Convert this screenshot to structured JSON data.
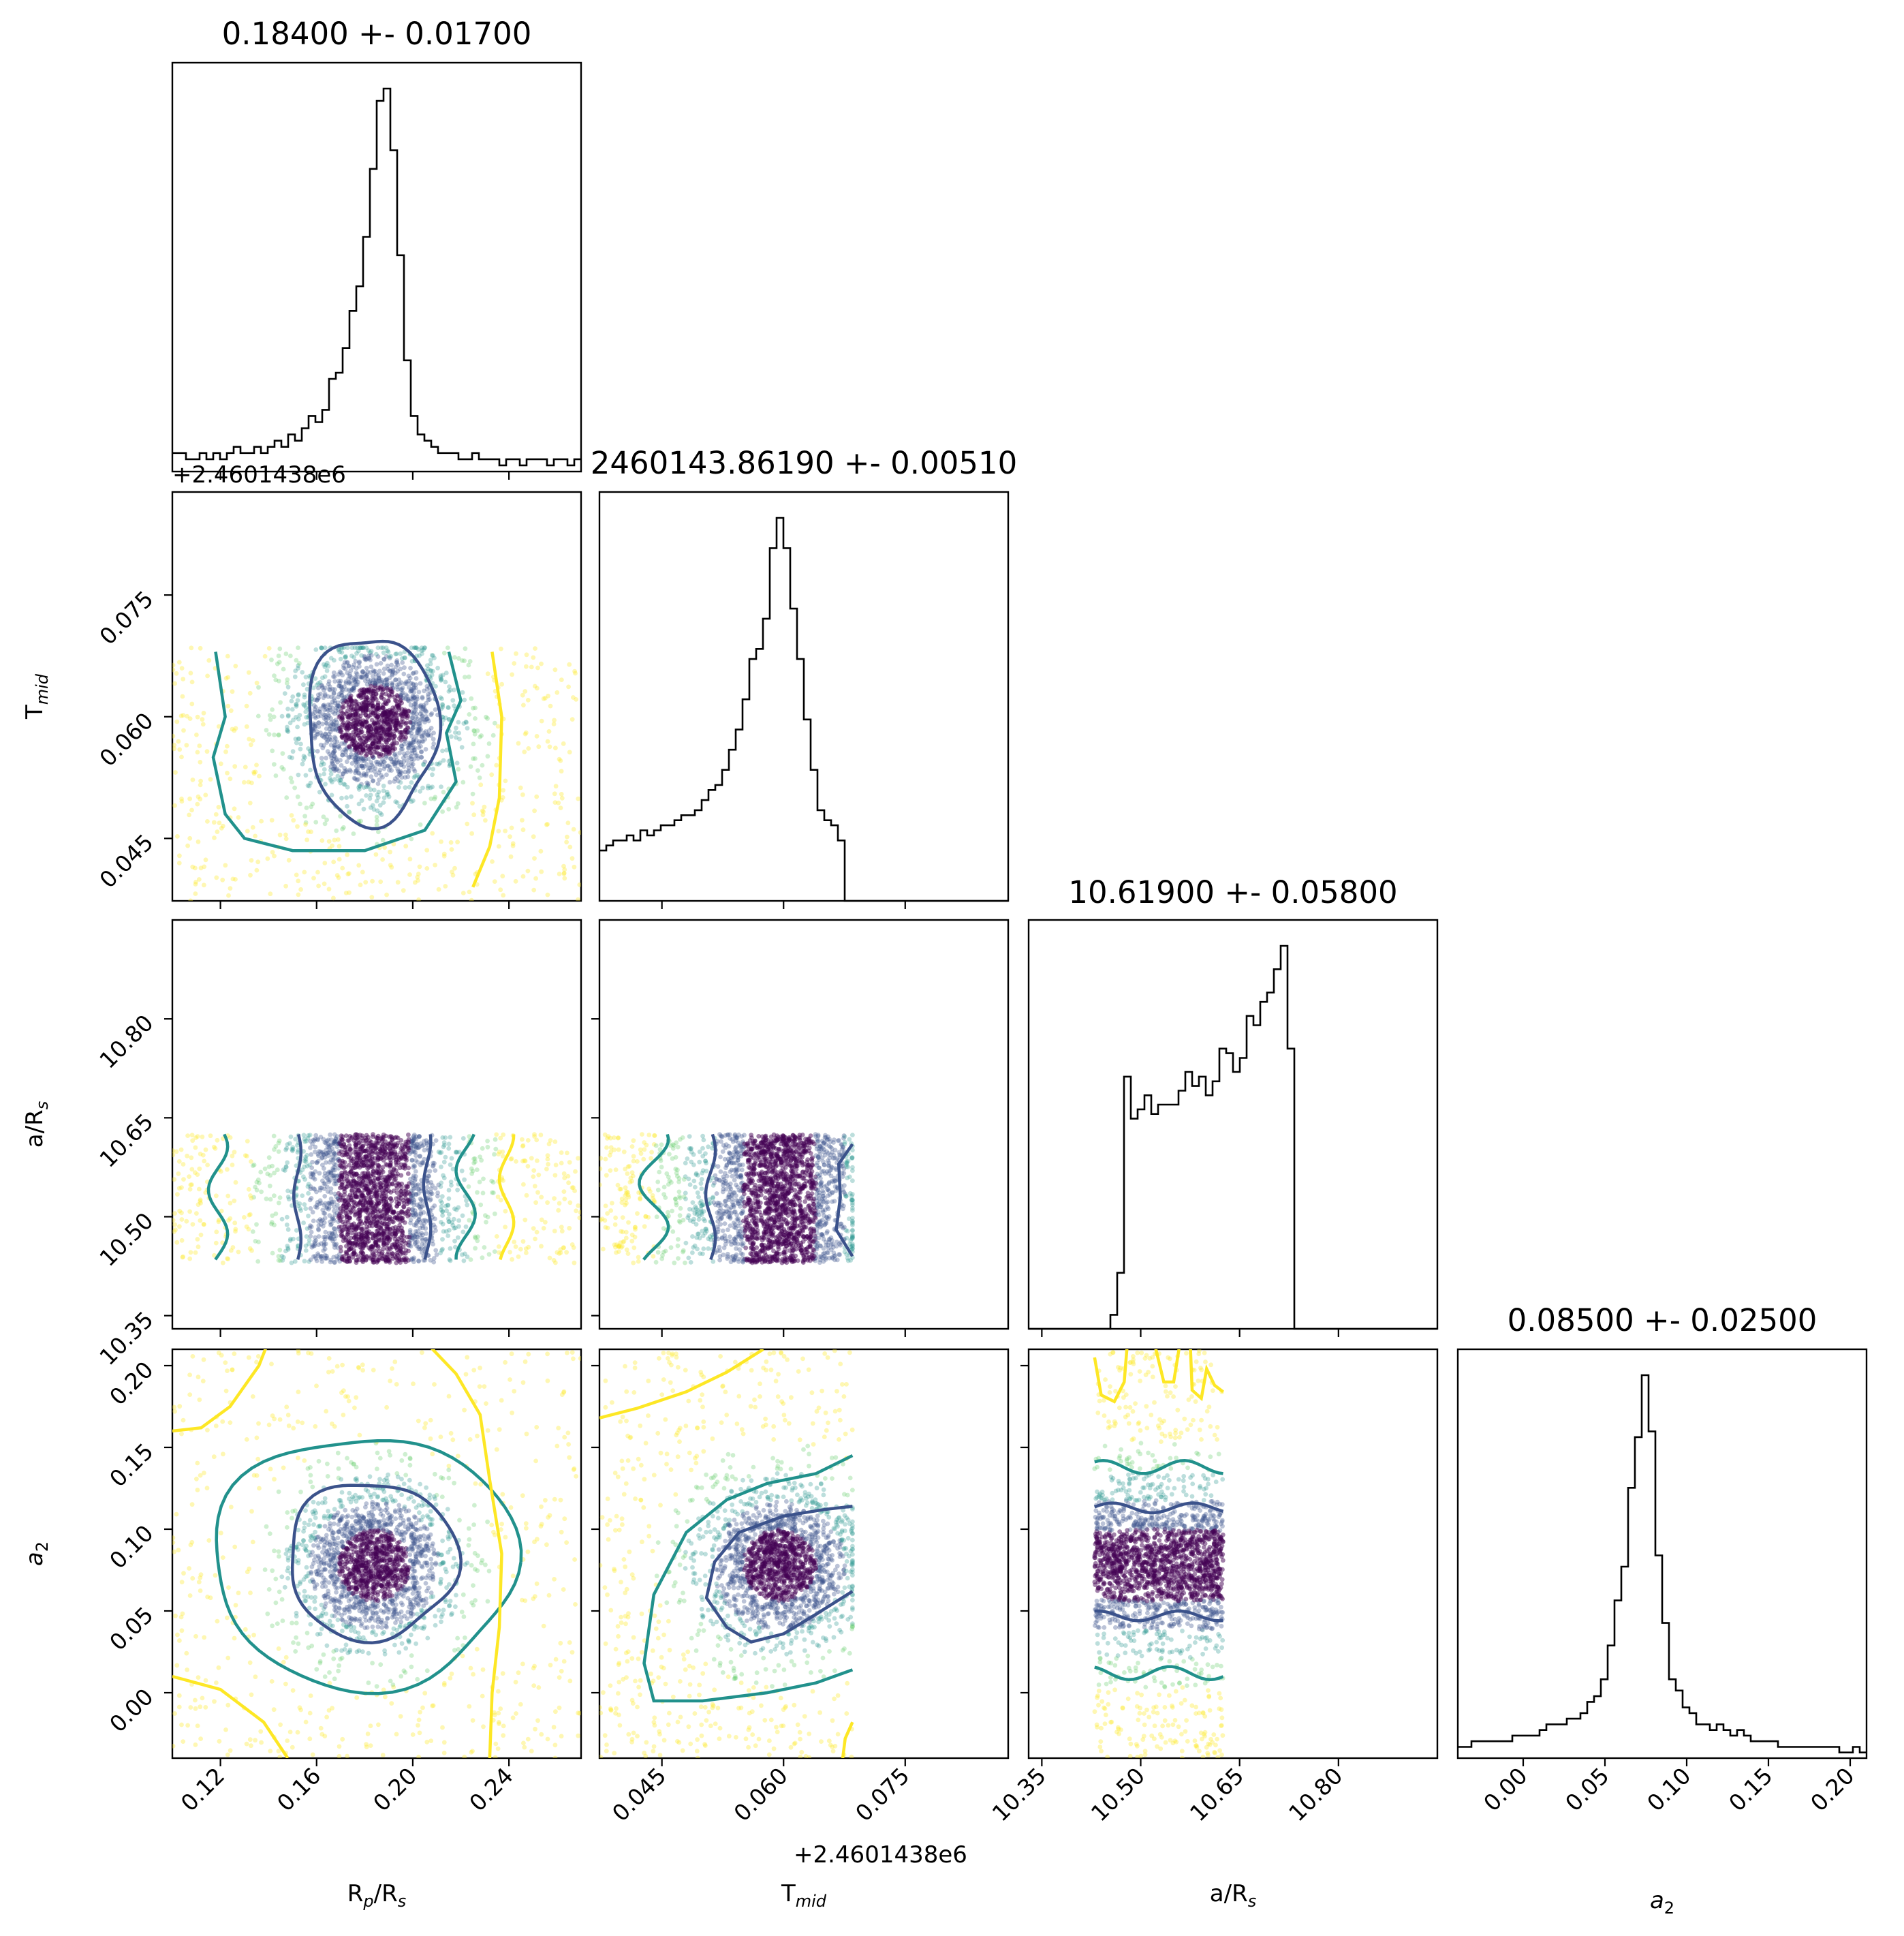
{
  "chart_data": {
    "type": "scatter",
    "kind": "corner plot",
    "parameters": [
      {
        "key": "rprs",
        "label": "R_p/R_s",
        "axis_label": "Rp/Rs",
        "range": [
          0.1,
          0.27
        ],
        "ticks": [
          0.12,
          0.16,
          0.2,
          0.24
        ],
        "tick_labels": [
          "0.12",
          "0.16",
          "0.20",
          "0.24"
        ],
        "title": "0.18400 +- 0.01700",
        "center": 0.184,
        "sigma": 0.017
      },
      {
        "key": "tmid",
        "label": "T_mid",
        "axis_label": "Tmid",
        "range": [
          0.0373,
          0.0877
        ],
        "ticks": [
          0.045,
          0.06,
          0.075
        ],
        "tick_labels": [
          "0.045",
          "0.060",
          "0.075"
        ],
        "offset": "+2.4601438e6",
        "title": "2460143.86190 +- 0.00510",
        "center": 0.0619,
        "sigma": 0.0051
      },
      {
        "key": "ars",
        "label": "a/R_s",
        "axis_label": "a/Rs",
        "range": [
          10.33,
          10.95
        ],
        "ticks": [
          10.35,
          10.5,
          10.65,
          10.8
        ],
        "tick_labels": [
          "10.35",
          "10.50",
          "10.65",
          "10.80"
        ],
        "title": "10.61900 +- 0.05800",
        "center": 10.619,
        "sigma": 0.058
      },
      {
        "key": "a2",
        "label": "a_2",
        "axis_label": "a2",
        "range": [
          -0.04,
          0.21
        ],
        "ticks": [
          0.0,
          0.05,
          0.1,
          0.15,
          0.2
        ],
        "tick_labels": [
          "0.00",
          "0.05",
          "0.10",
          "0.15",
          "0.20"
        ],
        "title": "0.08500 +- 0.02500",
        "center": 0.085,
        "sigma": 0.025
      }
    ],
    "histograms": {
      "rprs": {
        "edges_range": [
          0.1,
          0.27
        ],
        "bins": 60,
        "counts": [
          3,
          3,
          2,
          2,
          3,
          2,
          3,
          2,
          3,
          4,
          3,
          3,
          4,
          3,
          4,
          5,
          4,
          6,
          5,
          7,
          9,
          8,
          10,
          15,
          16,
          20,
          26,
          30,
          38,
          49,
          60,
          62,
          52,
          35,
          18,
          9,
          6,
          5,
          4,
          3,
          3,
          3,
          2,
          2,
          3,
          2,
          2,
          2,
          1,
          2,
          2,
          1,
          2,
          2,
          2,
          1,
          2,
          2,
          1,
          2
        ]
      },
      "tmid": {
        "edges_range": [
          0.0373,
          0.0877
        ],
        "bins": 60,
        "counts": [
          10,
          11,
          12,
          12,
          13,
          12,
          14,
          13,
          14,
          15,
          15,
          16,
          17,
          17,
          18,
          20,
          22,
          23,
          26,
          30,
          34,
          40,
          48,
          50,
          56,
          70,
          76,
          70,
          58,
          48,
          36,
          26,
          18,
          16,
          15,
          12,
          0,
          0,
          0,
          0,
          0,
          0,
          0,
          0,
          0,
          0,
          0,
          0,
          0,
          0,
          0,
          0,
          0,
          0,
          0,
          0,
          0,
          0,
          0,
          0
        ]
      },
      "ars": {
        "edges_range": [
          10.33,
          10.95
        ],
        "bins": 60,
        "counts": [
          0,
          0,
          0,
          0,
          0,
          0,
          0,
          0,
          0,
          0,
          0,
          0,
          3,
          12,
          54,
          45,
          47,
          50,
          46,
          48,
          48,
          48,
          51,
          55,
          52,
          54,
          50,
          53,
          60,
          59,
          55,
          58,
          67,
          65,
          70,
          72,
          77,
          82,
          60,
          0,
          0,
          0,
          0,
          0,
          0,
          0,
          0,
          0,
          0,
          0,
          0,
          0,
          0,
          0,
          0,
          0,
          0,
          0,
          0,
          0
        ]
      },
      "a2": {
        "edges_range": [
          -0.04,
          0.21
        ],
        "bins": 60,
        "counts": [
          2,
          2,
          3,
          3,
          3,
          3,
          3,
          3,
          4,
          4,
          4,
          4,
          5,
          6,
          6,
          6,
          7,
          7,
          8,
          10,
          11,
          14,
          20,
          28,
          34,
          48,
          57,
          68,
          58,
          36,
          24,
          14,
          12,
          9,
          8,
          6,
          6,
          5,
          6,
          5,
          4,
          5,
          4,
          3,
          3,
          3,
          3,
          2,
          2,
          2,
          2,
          2,
          2,
          2,
          2,
          2,
          1,
          1,
          2,
          1
        ]
      }
    },
    "point_colors": [
      "#440154",
      "#3b528b",
      "#21918c",
      "#5ec962",
      "#fde725"
    ],
    "contour_colors": [
      "#3b528b",
      "#21918c",
      "#fde725"
    ],
    "contour_levels": [
      "1-sigma",
      "2-sigma",
      "3-sigma"
    ],
    "colormap": "viridis",
    "grid": false,
    "legend": "none"
  },
  "labels": {
    "x_rprs_main": "R",
    "x_rprs_sub": "p",
    "x_rprs_mid": "/R",
    "x_rprs_sub2": "s",
    "x_tmid_main": "T",
    "x_tmid_sub": "mid",
    "x_ars_main": "a/R",
    "x_ars_sub": "s",
    "x_a2_main": "a",
    "x_a2_sub": "2",
    "y_tmid_main": "T",
    "y_tmid_sub": "mid",
    "y_ars_main": "a/R",
    "y_ars_sub": "s",
    "y_a2_main": "a",
    "y_a2_sub": "2",
    "offset_text": "+2.4601438e6"
  }
}
